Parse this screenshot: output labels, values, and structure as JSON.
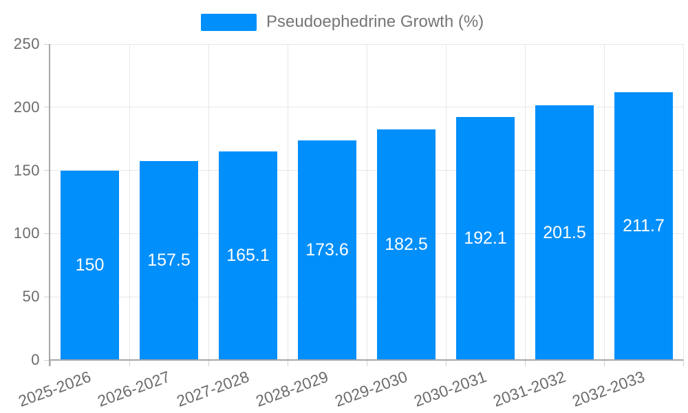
{
  "chart_data": {
    "type": "bar",
    "title": "",
    "categories": [
      "2025-2026",
      "2026-2027",
      "2027-2028",
      "2028-2029",
      "2029-2030",
      "2030-2031",
      "2031-2032",
      "2032-2033"
    ],
    "series": [
      {
        "name": "Pseudoephedrine Growth (%)",
        "values": [
          150,
          157.5,
          165.1,
          173.6,
          182.5,
          192.1,
          201.5,
          211.7
        ]
      }
    ],
    "data_labels": [
      "150",
      "157.5",
      "165.1",
      "173.6",
      "182.5",
      "192.1",
      "201.5",
      "211.7"
    ],
    "xlabel": "",
    "ylabel": "",
    "ylim": [
      0,
      250
    ],
    "yticks": [
      0,
      50,
      100,
      150,
      200,
      250
    ],
    "grid": true,
    "legend_position": "top",
    "bar_color": "#008FFB",
    "axis_label_color": "#6b6b6b",
    "legend_text_color": "#757575",
    "data_label_color": "#ffffff"
  }
}
